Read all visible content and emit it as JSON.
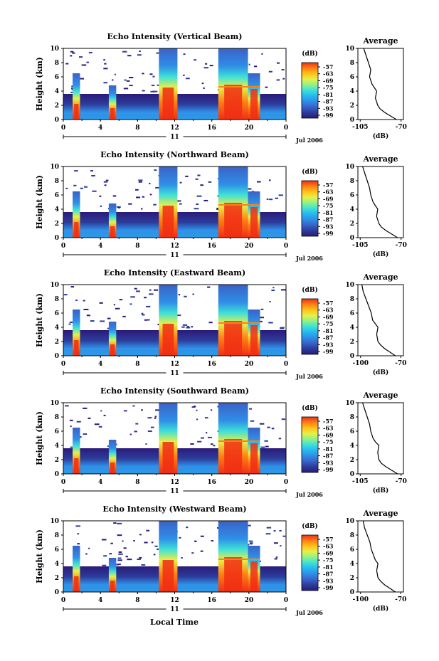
{
  "chart_data": [
    {
      "type": "heatmap",
      "title": "Echo Intensity (Vertical Beam)",
      "ylabel": "Height (km)",
      "ylim": [
        0,
        10
      ],
      "xlim": [
        0,
        24
      ],
      "xticks": [
        "0",
        "4",
        "8",
        "12",
        "16",
        "20",
        "0"
      ],
      "day_label": "11",
      "date_label": "Jul 2006",
      "colorbar": {
        "label": "(dB)",
        "ticks": [
          "-57",
          "-63",
          "-69",
          "-75",
          "-81",
          "-87",
          "-93",
          "-99"
        ]
      },
      "profile": {
        "title": "Average",
        "xlabel": "(dB)",
        "xticks": [
          "-105",
          "-70"
        ],
        "yticks": [
          "0",
          "2",
          "4",
          "6",
          "8",
          "10"
        ],
        "x": [
          -74,
          -79,
          -84,
          -88,
          -90,
          -92,
          -91,
          -93,
          -95,
          -97,
          -96,
          -98,
          -100,
          -102
        ],
        "y": [
          0,
          0.5,
          1,
          1.5,
          2,
          3,
          4,
          4.5,
          5,
          6,
          7,
          8,
          9,
          10
        ]
      }
    },
    {
      "type": "heatmap",
      "title": "Echo Intensity (Northward Beam)",
      "ylabel": "Height (km)",
      "ylim": [
        0,
        10
      ],
      "xlim": [
        0,
        24
      ],
      "xticks": [
        "0",
        "4",
        "8",
        "12",
        "16",
        "20",
        "0"
      ],
      "day_label": "11",
      "date_label": "Jul 2006",
      "colorbar": {
        "label": "(dB)",
        "ticks": [
          "-57",
          "-63",
          "-69",
          "-75",
          "-81",
          "-87",
          "-93",
          "-99"
        ]
      },
      "profile": {
        "title": "Average",
        "xlabel": "(dB)",
        "xticks": [
          "-105",
          "-70"
        ],
        "yticks": [
          "0",
          "2",
          "4",
          "6",
          "8",
          "10"
        ],
        "x": [
          -73,
          -78,
          -83,
          -87,
          -89,
          -91,
          -90,
          -92,
          -94,
          -96,
          -97,
          -99,
          -101,
          -103
        ],
        "y": [
          0,
          0.5,
          1,
          1.5,
          2,
          3,
          4,
          4.5,
          5,
          6,
          7,
          8,
          9,
          10
        ]
      }
    },
    {
      "type": "heatmap",
      "title": "Echo Intensity (Eastward Beam)",
      "ylabel": "Height (km)",
      "ylim": [
        0,
        10
      ],
      "xlim": [
        0,
        24
      ],
      "xticks": [
        "0",
        "4",
        "8",
        "12",
        "16",
        "20",
        "0"
      ],
      "day_label": "11",
      "date_label": "Jul 2006",
      "colorbar": {
        "label": "(dB)",
        "ticks": [
          "-57",
          "-63",
          "-69",
          "-75",
          "-81",
          "-87",
          "-93",
          "-99"
        ]
      },
      "profile": {
        "title": "Average",
        "xlabel": "(dB)",
        "xticks": [
          "-100",
          "-70"
        ],
        "yticks": [
          "0",
          "2",
          "4",
          "6",
          "8",
          "10"
        ],
        "x": [
          -74,
          -78,
          -82,
          -85,
          -87,
          -88,
          -87,
          -89,
          -91,
          -92,
          -94,
          -96,
          -98,
          -99
        ],
        "y": [
          0,
          0.5,
          1,
          1.5,
          2,
          3,
          4,
          4.5,
          5,
          6,
          7,
          8,
          9,
          10
        ]
      }
    },
    {
      "type": "heatmap",
      "title": "Echo Intensity (Southward Beam)",
      "ylabel": "Height (km)",
      "ylim": [
        0,
        10
      ],
      "xlim": [
        0,
        24
      ],
      "xticks": [
        "0",
        "4",
        "8",
        "12",
        "16",
        "20",
        "0"
      ],
      "day_label": "11",
      "date_label": "Jul 2006",
      "colorbar": {
        "label": "(dB)",
        "ticks": [
          "-57",
          "-63",
          "-69",
          "-75",
          "-81",
          "-87",
          "-93",
          "-99"
        ]
      },
      "profile": {
        "title": "Average",
        "xlabel": "(dB)",
        "xticks": [
          "-105",
          "-70"
        ],
        "yticks": [
          "0",
          "2",
          "4",
          "6",
          "8",
          "10"
        ],
        "x": [
          -73,
          -78,
          -83,
          -87,
          -89,
          -90,
          -89,
          -92,
          -94,
          -96,
          -97,
          -99,
          -101,
          -103
        ],
        "y": [
          0,
          0.5,
          1,
          1.5,
          2,
          3,
          4,
          4.5,
          5,
          6,
          7,
          8,
          9,
          10
        ]
      }
    },
    {
      "type": "heatmap",
      "title": "Echo Intensity (Westward Beam)",
      "ylabel": "Height (km)",
      "ylim": [
        0,
        10
      ],
      "xlim": [
        0,
        24
      ],
      "xticks": [
        "0",
        "4",
        "8",
        "12",
        "16",
        "20",
        "0"
      ],
      "day_label": "11",
      "date_label": "Jul 2006",
      "xlabel": "Local Time",
      "colorbar": {
        "label": "(dB)",
        "ticks": [
          "-57",
          "-63",
          "-69",
          "-75",
          "-81",
          "-87",
          "-93",
          "-99"
        ]
      },
      "profile": {
        "title": "Average",
        "xlabel": "(dB)",
        "xticks": [
          "-100",
          "-70"
        ],
        "yticks": [
          "0",
          "2",
          "4",
          "6",
          "8",
          "10"
        ],
        "x": [
          -74,
          -78,
          -82,
          -85,
          -87,
          -88,
          -87,
          -89,
          -90,
          -92,
          -93,
          -95,
          -97,
          -98
        ],
        "y": [
          0,
          0.5,
          1,
          1.5,
          2,
          3,
          4,
          4.5,
          5,
          6,
          7,
          8,
          9,
          10
        ]
      }
    }
  ],
  "colors": {
    "scale": [
      "#2b1a7a",
      "#2c3c9a",
      "#3a62c8",
      "#2f8ee6",
      "#26b8f0",
      "#3fe0d8",
      "#8df28a",
      "#e6f048",
      "#ffc21a",
      "#ff8014",
      "#f02e14"
    ],
    "axis": "#000000"
  }
}
